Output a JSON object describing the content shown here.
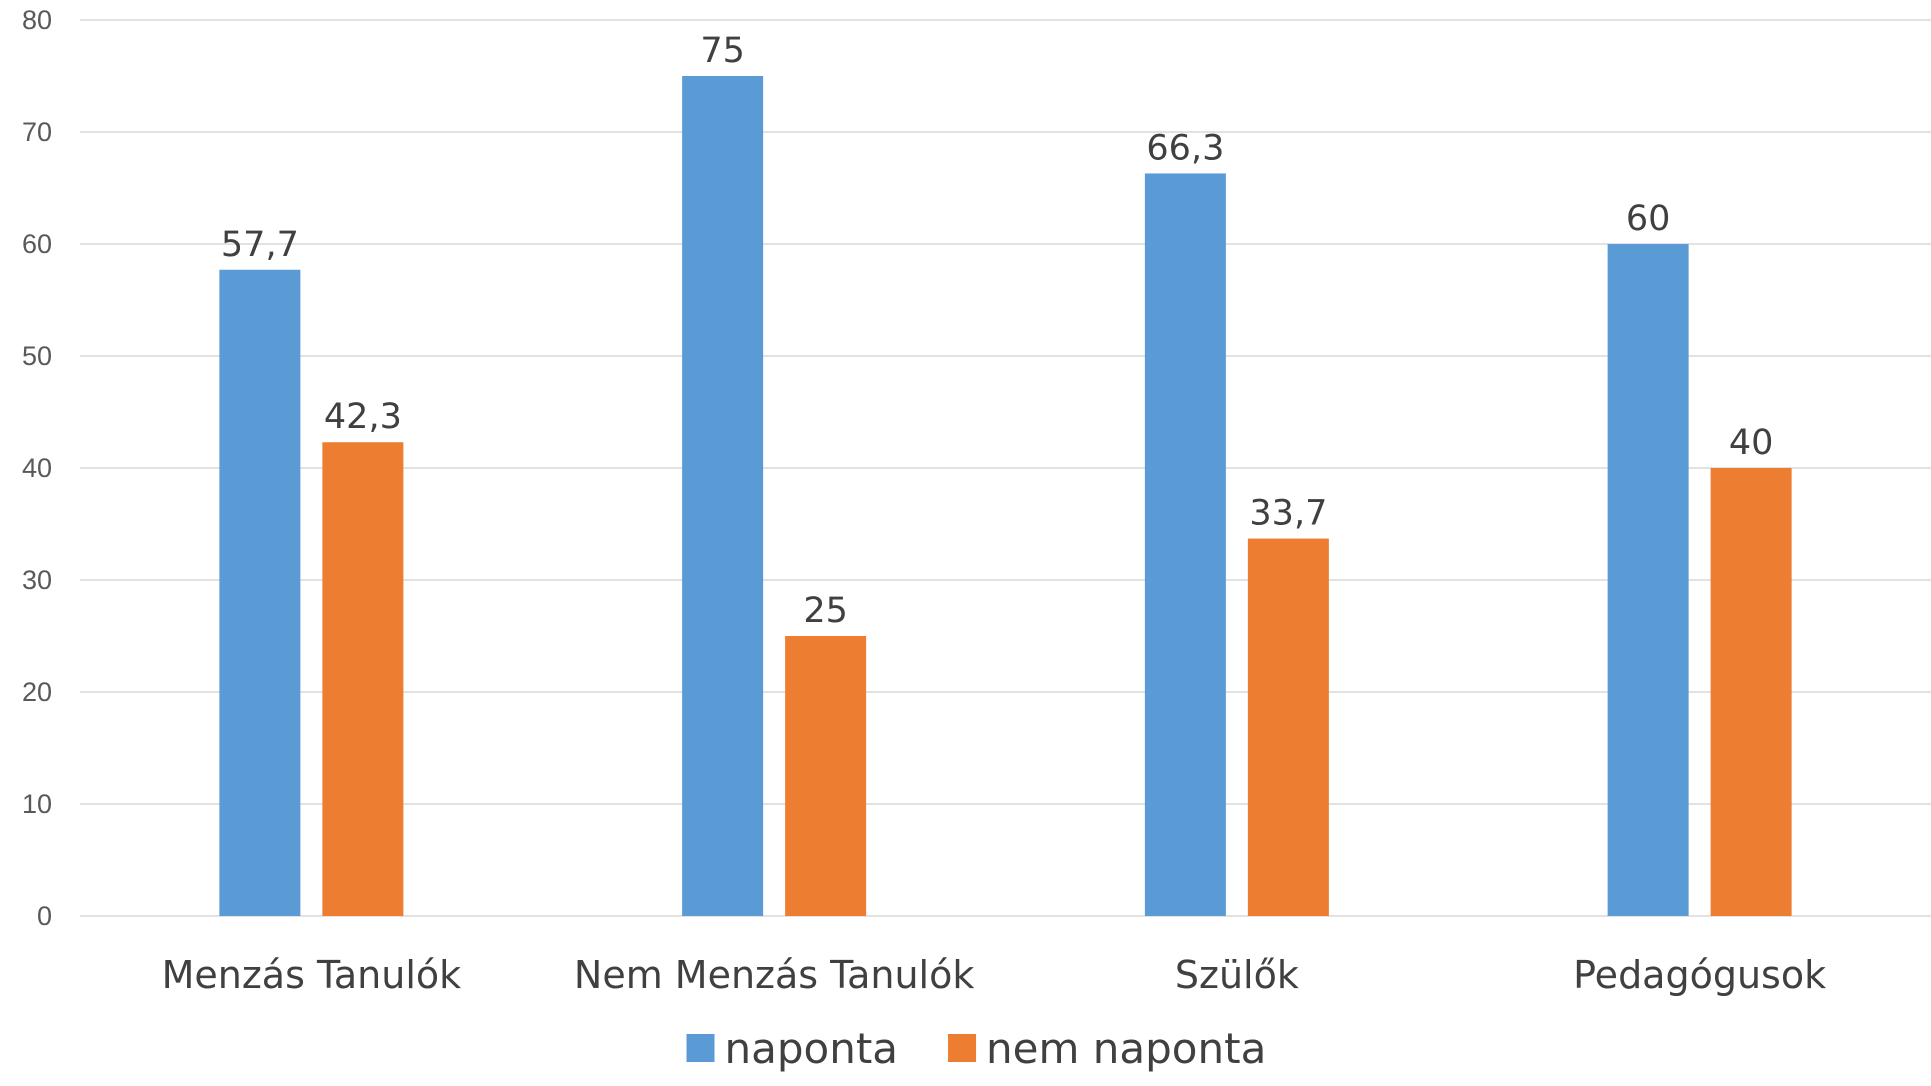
{
  "chart_data": {
    "type": "bar",
    "categories": [
      "Menzás Tanulók",
      "Nem Menzás Tanulók",
      "Szülők",
      "Pedagógusok"
    ],
    "series": [
      {
        "name": "naponta",
        "values": [
          57.7,
          75,
          66.3,
          60
        ],
        "labels": [
          "57,7",
          "75",
          "66,3",
          "60"
        ],
        "color": "#5b9bd5"
      },
      {
        "name": "nem naponta",
        "values": [
          42.3,
          25,
          33.7,
          40
        ],
        "labels": [
          "42,3",
          "25",
          "33,7",
          "40"
        ],
        "color": "#ed7d31"
      }
    ],
    "ylim": [
      0,
      80
    ],
    "yticks": [
      0,
      10,
      20,
      30,
      40,
      50,
      60,
      70,
      80
    ],
    "grid": true,
    "legend": "bottom",
    "title": "",
    "xlabel": "",
    "ylabel": ""
  }
}
